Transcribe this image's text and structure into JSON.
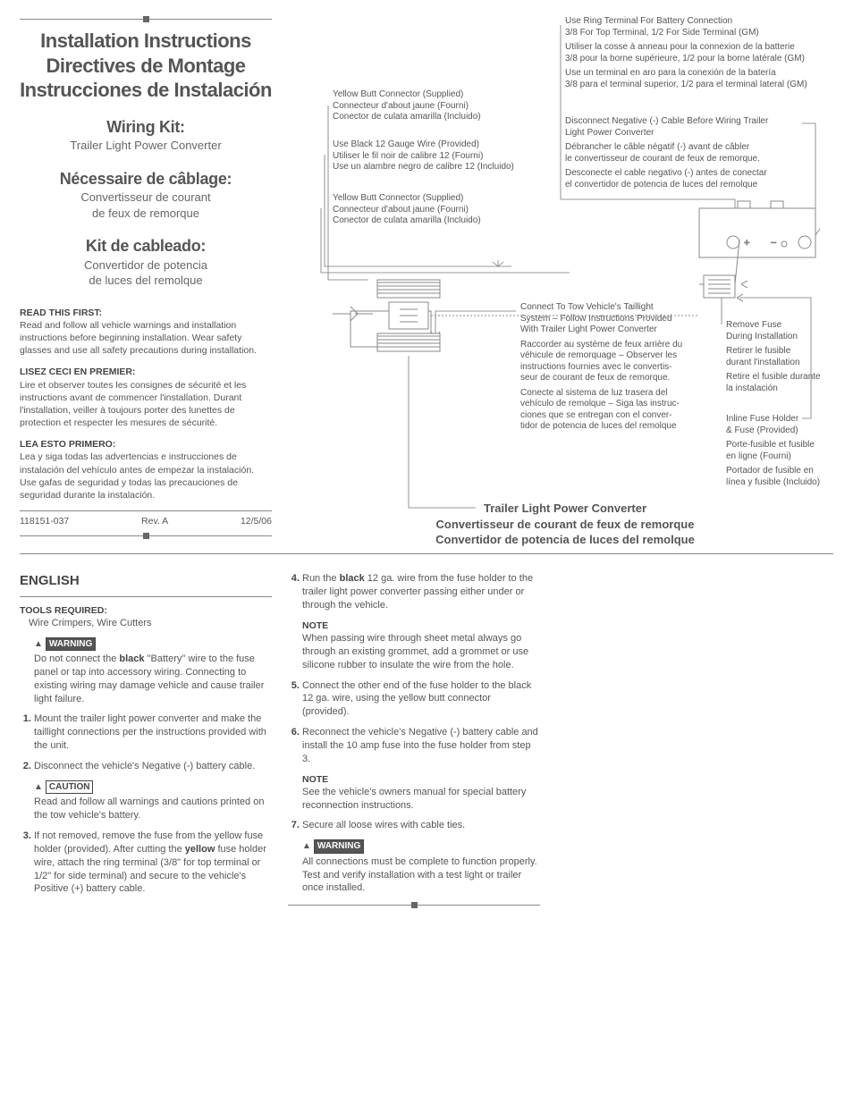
{
  "header": {
    "main_titles": [
      "Installation Instructions",
      "Directives de Montage",
      "Instrucciones de Instalación"
    ],
    "sections": [
      {
        "h": "Wiring Kit:",
        "s": "Trailer Light Power Converter"
      },
      {
        "h": "Nécessaire de câblage:",
        "s": "Convertisseur de courant\nde feux de remorque"
      },
      {
        "h": "Kit de cableado:",
        "s": "Convertidor de potencia\nde luces del remolque"
      }
    ]
  },
  "read_first": [
    {
      "hd": "READ THIS FIRST:",
      "body": "Read and follow all vehicle warnings and installation instructions before beginning installation. Wear safety glasses and use all safety precautions during installation."
    },
    {
      "hd": "LISEZ CECI EN PREMIER:",
      "body": "Lire et observer toutes les consignes de sécurité et les instructions avant de commencer l'installation. Durant l'installation, veiller à toujours porter des lunettes de protection et respecter les mesures de sécurité."
    },
    {
      "hd": "LEA ESTO PRIMERO:",
      "body": "Lea y siga todas las advertencias e instrucciones de instalación del vehículo antes de empezar la instalación. Use gafas de seguridad y todas las precauciones de seguridad durante la instalación."
    }
  ],
  "docid": {
    "part": "118151-037",
    "rev": "Rev. A",
    "date": "12/5/06"
  },
  "diagram": {
    "labels": {
      "ring": {
        "en": "Use Ring Terminal For Battery Connection\n3/8 For Top Terminal, 1/2 For Side Terminal (GM)",
        "fr": "Utiliser la cosse à anneau pour la connexion de la batterie\n3/8 pour la borne supérieure, 1/2 pour la borne latérale (GM)",
        "es": "Use un terminal en aro para la conexión de la batería\n3/8 para el terminal superior, 1/2 para el terminal lateral (GM)"
      },
      "disconnect": {
        "en": "Disconnect Negative (-) Cable Before Wiring Trailer\nLight Power Converter",
        "fr": "Débrancher le câble négatif (-) avant de câbler\nle convertisseur de courant de feux de remorque.",
        "es": "Desconecte el cable negativo (-) antes de conectar\nel convertidor de potencia de luces del remolque"
      },
      "ybc1": {
        "en": "Yellow Butt Connector (Supplied)",
        "fr": "Connecteur d'about jaune (Fourni)",
        "es": "Conector de culata amarilla (Incluido)"
      },
      "black12": {
        "en": "Use Black 12 Gauge Wire (Provided)",
        "fr": "Utiliser le fil noir de calibre 12 (Fourni)",
        "es": "Use un alambre negro de calibre 12 (Incluido)"
      },
      "ybc2": {
        "en": "Yellow Butt Connector (Supplied)",
        "fr": "Connecteur d'about jaune (Fourni)",
        "es": "Conector de culata amarilla (Incluido)"
      },
      "connect_tail": {
        "en": "Connect To Tow Vehicle's Taillight\nSystem – Follow Instructions Provided\nWith Trailer Light Power Converter",
        "fr": "Raccorder au système de feux arrière du\nvéhicule de remorquage – Observer les\ninstructions fournies avec le convertis-\nseur de courant de feux de remorque.",
        "es": "Conecte al sistema de luz trasera del\nvehículo de remolque – Siga las instruc-\nciones que se entregan con el conver-\ntidor de potencia de luces del remolque"
      },
      "remove_fuse": {
        "en": "Remove Fuse\nDuring Installation",
        "fr": "Retirer le fusible\ndurant l'installation",
        "es": "Retire el fusible durante\nla instalación"
      },
      "inline_fuse": {
        "en": "Inline Fuse Holder\n& Fuse (Provided)",
        "fr": "Porte-fusible et fusible\nen ligne (Fourni)",
        "es": "Portador de fusible en\nlínea y fusible (Incluido)"
      }
    },
    "title": {
      "en": "Trailer Light Power Converter",
      "fr": "Convertisseur de courant de feux de remorque",
      "es": "Convertidor de potencia de luces del remolque"
    }
  },
  "english": {
    "heading": "ENGLISH",
    "tools_hd": "TOOLS REQUIRED:",
    "tools": "Wire Crimpers, Wire Cutters",
    "warn1_label": "WARNING",
    "warn1": "Do not connect the <b>black</b> \"Battery\" wire to the fuse panel or tap into accessory wiring. Connecting to existing wiring may damage vehicle and cause trailer light failure.",
    "step1": "Mount the trailer light power converter and make the taillight connections per the instructions provided with the unit.",
    "step2": "Disconnect the vehicle's Negative (-) battery cable.",
    "caut_label": "CAUTION",
    "caut": "Read and follow all warnings and cautions printed on the tow vehicle's battery.",
    "step3": "If not removed, remove the fuse from the yellow fuse holder (provided). After cutting the <b>yellow</b> fuse holder wire, attach the ring terminal (3/8\" for top terminal or 1/2\" for side terminal) and secure to the vehicle's Positive (+) battery cable.",
    "step4": "Run the <b>black</b> 12 ga. wire from the fuse holder to the trailer light power converter passing either under or through the vehicle.",
    "note1_hd": "NOTE",
    "note1": "When passing wire through sheet metal always go through an existing grommet, add a grommet or use silicone rubber to insulate the wire from the hole.",
    "step5": "Connect the other end of the fuse holder to the black 12 ga. wire, using the yellow butt connector (provided).",
    "step6": "Reconnect the vehicle's Negative (-) battery cable and install the 10 amp fuse into the fuse holder from step 3.",
    "note2_hd": "NOTE",
    "note2": "See the vehicle's owners manual for special battery reconnection instructions.",
    "step7": "Secure all loose wires with cable ties.",
    "warn2_label": "WARNING",
    "warn2": "All connections must be complete to function properly. Test and verify installation with a test light or trailer once installed."
  }
}
